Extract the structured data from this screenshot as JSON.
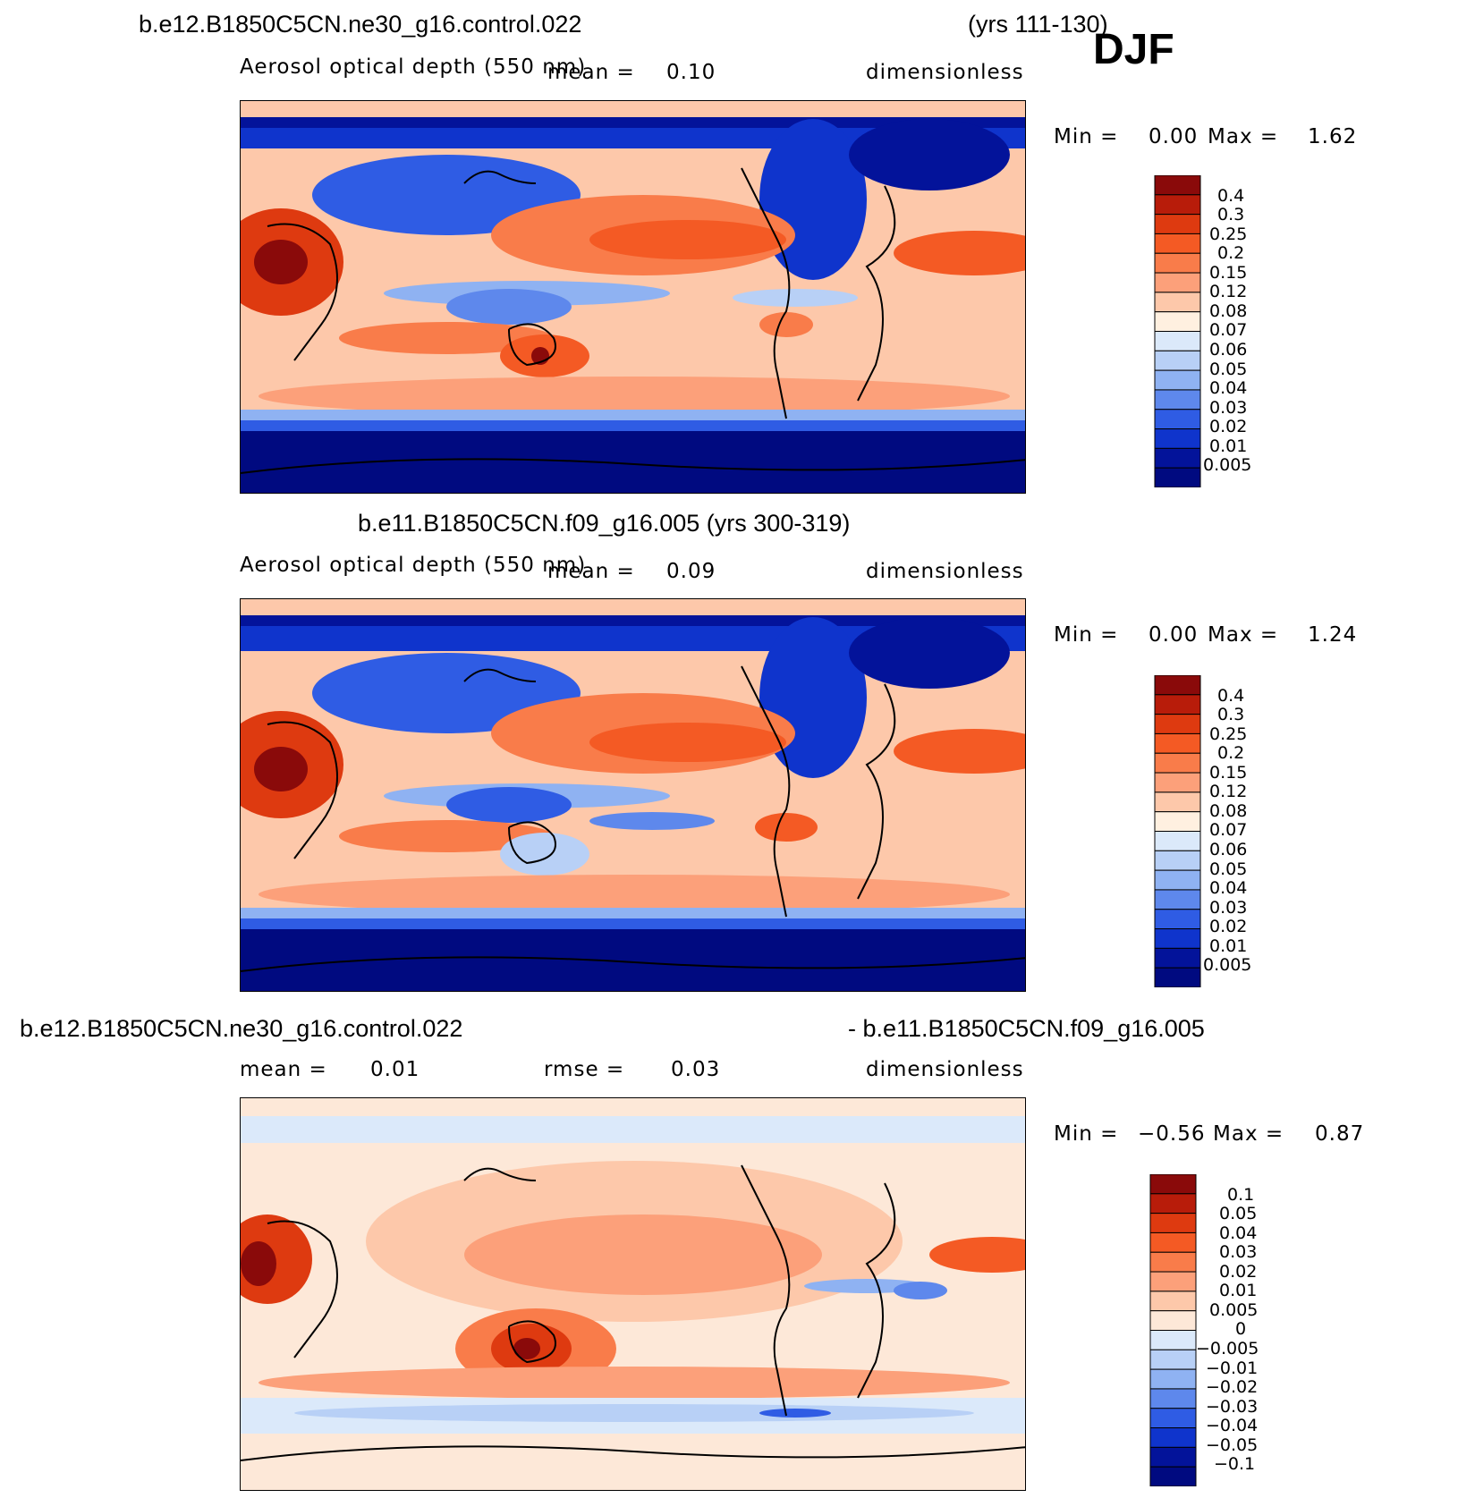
{
  "season": "DJF",
  "panels": [
    {
      "id": "top",
      "title_left": "b.e12.B1850C5CN.ne30_g16.control.022",
      "title_right": "(yrs 111-130)",
      "subtitle_left": "Aerosol optical depth (550 nm)",
      "mean_label": "mean =",
      "mean_value": "0.10",
      "units": "dimensionless",
      "min_label": "Min =",
      "min_value": "0.00",
      "max_label": "Max =",
      "max_value": "1.62",
      "colorbar": {
        "labels": [
          "0.4",
          "0.3",
          "0.25",
          "0.2",
          "0.15",
          "0.12",
          "0.08",
          "0.07",
          "0.06",
          "0.05",
          "0.04",
          "0.03",
          "0.02",
          "0.01",
          "0.005"
        ],
        "colors": [
          "#8a0a0a",
          "#b81c0a",
          "#de3a10",
          "#f45a24",
          "#f97c4a",
          "#fca07a",
          "#fdc8aa",
          "#fff0e0",
          "#dbe9fa",
          "#b8d0f6",
          "#8fb2f2",
          "#5e88ec",
          "#2f5ce4",
          "#0f34cc",
          "#03139a",
          "#000a80"
        ]
      }
    },
    {
      "id": "middle",
      "title_center": "b.e11.B1850C5CN.f09_g16.005 (yrs 300-319)",
      "subtitle_left": "Aerosol optical depth (550 nm)",
      "mean_label": "mean =",
      "mean_value": "0.09",
      "units": "dimensionless",
      "min_label": "Min =",
      "min_value": "0.00",
      "max_label": "Max =",
      "max_value": "1.24",
      "colorbar": {
        "labels": [
          "0.4",
          "0.3",
          "0.25",
          "0.2",
          "0.15",
          "0.12",
          "0.08",
          "0.07",
          "0.06",
          "0.05",
          "0.04",
          "0.03",
          "0.02",
          "0.01",
          "0.005"
        ],
        "colors": [
          "#8a0a0a",
          "#b81c0a",
          "#de3a10",
          "#f45a24",
          "#f97c4a",
          "#fca07a",
          "#fdc8aa",
          "#fff0e0",
          "#dbe9fa",
          "#b8d0f6",
          "#8fb2f2",
          "#5e88ec",
          "#2f5ce4",
          "#0f34cc",
          "#03139a",
          "#000a80"
        ]
      }
    },
    {
      "id": "bottom",
      "title_left": "b.e12.B1850C5CN.ne30_g16.control.022",
      "title_right": "- b.e11.B1850C5CN.f09_g16.005",
      "mean_label": "mean =",
      "mean_value": "0.01",
      "rmse_label": "rmse =",
      "rmse_value": "0.03",
      "units": "dimensionless",
      "min_label": "Min =",
      "min_value": "−0.56",
      "max_label": "Max =",
      "max_value": "0.87",
      "colorbar": {
        "labels": [
          "0.1",
          "0.05",
          "0.04",
          "0.03",
          "0.02",
          "0.01",
          "0.005",
          "0",
          "−0.005",
          "−0.01",
          "−0.02",
          "−0.03",
          "−0.04",
          "−0.05",
          "−0.1"
        ],
        "colors": [
          "#8a0a0a",
          "#b81c0a",
          "#de3a10",
          "#f45a24",
          "#f97c4a",
          "#fca07a",
          "#fdc8aa",
          "#fde8d8",
          "#dbe9fa",
          "#b8d0f6",
          "#8fb2f2",
          "#5e88ec",
          "#2f5ce4",
          "#0f34cc",
          "#03139a",
          "#000a80"
        ]
      }
    }
  ],
  "chart_data": [
    {
      "type": "heatmap",
      "title": "b.e12.B1850C5CN.ne30_g16.control.022 (yrs 111-130) DJF",
      "variable": "Aerosol optical depth (550 nm)",
      "units": "dimensionless",
      "mean": 0.1,
      "min": 0.0,
      "max": 1.62,
      "contour_levels": [
        0.005,
        0.01,
        0.02,
        0.03,
        0.04,
        0.05,
        0.06,
        0.07,
        0.08,
        0.12,
        0.15,
        0.2,
        0.25,
        0.3,
        0.4
      ]
    },
    {
      "type": "heatmap",
      "title": "b.e11.B1850C5CN.f09_g16.005 (yrs 300-319)",
      "variable": "Aerosol optical depth (550 nm)",
      "units": "dimensionless",
      "mean": 0.09,
      "min": 0.0,
      "max": 1.24,
      "contour_levels": [
        0.005,
        0.01,
        0.02,
        0.03,
        0.04,
        0.05,
        0.06,
        0.07,
        0.08,
        0.12,
        0.15,
        0.2,
        0.25,
        0.3,
        0.4
      ]
    },
    {
      "type": "heatmap",
      "title": "b.e12.B1850C5CN.ne30_g16.control.022 - b.e11.B1850C5CN.f09_g16.005",
      "units": "dimensionless",
      "mean": 0.01,
      "rmse": 0.03,
      "min": -0.56,
      "max": 0.87,
      "contour_levels": [
        -0.1,
        -0.05,
        -0.04,
        -0.03,
        -0.02,
        -0.01,
        -0.005,
        0,
        0.005,
        0.01,
        0.02,
        0.03,
        0.04,
        0.05,
        0.1
      ]
    }
  ]
}
